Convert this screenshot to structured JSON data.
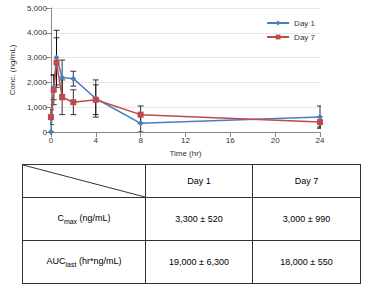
{
  "chart_data": {
    "type": "line",
    "x_label": "Time (hr)",
    "y_label": "Conc. (ng/mL)",
    "xlim": [
      0,
      24
    ],
    "xticks": [
      0,
      4,
      8,
      12,
      16,
      20,
      24
    ],
    "ylim": [
      0,
      5000
    ],
    "yticks": [
      0,
      1000,
      2000,
      3000,
      4000,
      5000
    ],
    "grid": true,
    "legend": "upper right",
    "x": [
      0,
      0.25,
      0.5,
      1,
      2,
      4,
      8,
      24
    ],
    "series": [
      {
        "name": "Day 1",
        "color": "#4a7ebb",
        "marker": "diamond",
        "line_style": "solid",
        "values": [
          0,
          1800,
          3000,
          2200,
          2150,
          1350,
          350,
          600
        ],
        "errors": [
          0,
          500,
          1100,
          700,
          300,
          750,
          350,
          450
        ]
      },
      {
        "name": "Day 7",
        "color": "#be4b48",
        "marker": "square",
        "line_style": "solid",
        "values": [
          600,
          1700,
          2800,
          1400,
          1200,
          1300,
          700,
          400
        ],
        "errors": [
          300,
          600,
          1000,
          700,
          500,
          600,
          350,
          200
        ]
      }
    ]
  },
  "table": {
    "header": [
      "Day 1",
      "Day 7"
    ],
    "rows": [
      {
        "label": {
          "main": "C",
          "sub": "max",
          "rest": " (ng/mL)"
        },
        "values": [
          "3,300 ± 520",
          "3,000 ± 990"
        ]
      },
      {
        "label": {
          "main": "AUC",
          "sub": "last",
          "rest": " (hr*ng/mL)"
        },
        "values": [
          "19,000 ± 6,300",
          "18,000 ± 550"
        ]
      }
    ]
  }
}
